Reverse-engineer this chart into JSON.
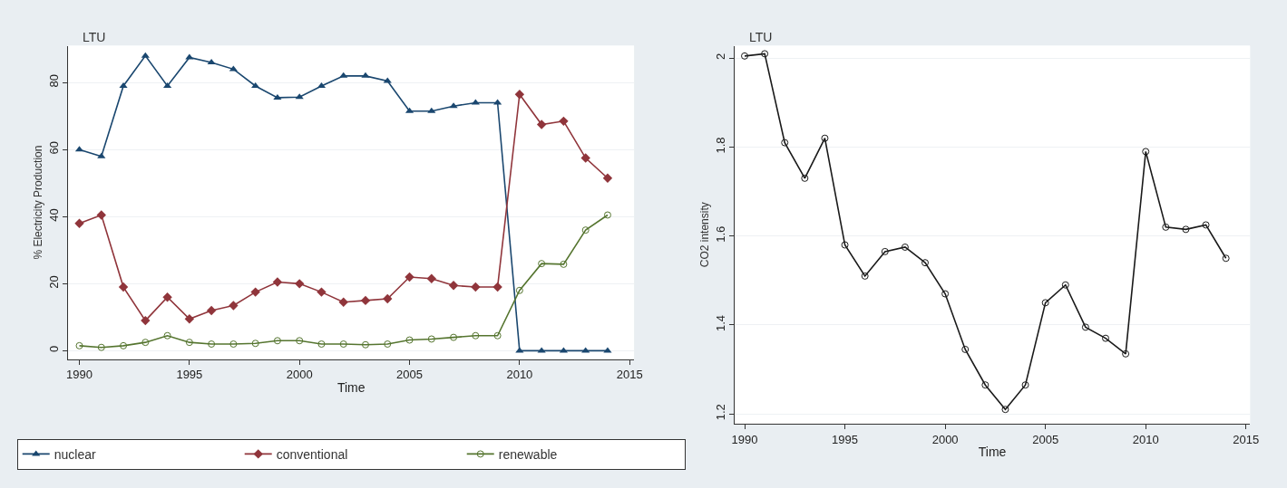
{
  "chart_data": [
    {
      "type": "line",
      "title": "LTU",
      "xlabel": "Time",
      "ylabel": "% Electricity Production",
      "x": [
        1990,
        1991,
        1992,
        1993,
        1994,
        1995,
        1996,
        1997,
        1998,
        1999,
        2000,
        2001,
        2002,
        2003,
        2004,
        2005,
        2006,
        2007,
        2008,
        2009,
        2010,
        2011,
        2012,
        2013,
        2014
      ],
      "series": [
        {
          "name": "nuclear",
          "color": "#1a476f",
          "marker": "triangle",
          "values": [
            60,
            58,
            79,
            88,
            79,
            87.5,
            86,
            84,
            79,
            75.5,
            75.7,
            79,
            82,
            82,
            80.5,
            71.5,
            71.5,
            73,
            74,
            74,
            0,
            0,
            0,
            0,
            0
          ]
        },
        {
          "name": "conventional",
          "color": "#90353b",
          "marker": "diamond",
          "values": [
            38,
            40.5,
            19,
            9,
            16,
            9.5,
            12,
            13.5,
            17.5,
            20.5,
            20,
            17.5,
            14.5,
            15,
            15.5,
            22,
            21.5,
            19.5,
            19,
            19,
            76.5,
            67.5,
            68.5,
            57.5,
            51.5
          ]
        },
        {
          "name": "renewable",
          "color": "#55752f",
          "marker": "circle",
          "values": [
            1.5,
            1,
            1.5,
            2.5,
            4.5,
            2.5,
            2,
            2,
            2.2,
            3,
            3,
            2,
            2,
            1.8,
            2,
            3.2,
            3.5,
            4,
            4.5,
            4.5,
            18,
            26,
            25.8,
            36,
            40.5
          ]
        }
      ],
      "xlim": [
        1989.5,
        2015.2
      ],
      "xticks": [
        1990,
        1995,
        2000,
        2005,
        2010,
        2015
      ],
      "ylim": [
        -2.5,
        91
      ],
      "yticks": [
        0,
        20,
        40,
        60,
        80
      ],
      "grid": "y",
      "legend": "bottom"
    },
    {
      "type": "line",
      "title": "LTU",
      "xlabel": "Time",
      "ylabel": "CO2 intensity",
      "x": [
        1990,
        1991,
        1992,
        1993,
        1994,
        1995,
        1996,
        1997,
        1998,
        1999,
        2000,
        2001,
        2002,
        2003,
        2004,
        2005,
        2006,
        2007,
        2008,
        2009,
        2010,
        2011,
        2012,
        2013,
        2014
      ],
      "series": [
        {
          "color": "#1a1a1a",
          "marker": "circle",
          "values": [
            2.005,
            2.01,
            1.81,
            1.73,
            1.82,
            1.58,
            1.51,
            1.565,
            1.575,
            1.54,
            1.47,
            1.345,
            1.265,
            1.21,
            1.265,
            1.45,
            1.49,
            1.395,
            1.37,
            1.335,
            1.79,
            1.62,
            1.615,
            1.625,
            1.55
          ]
        }
      ],
      "xlim": [
        1989.5,
        2015.2
      ],
      "xticks": [
        1990,
        1995,
        2000,
        2005,
        2010,
        2015
      ],
      "ylim": [
        1.178,
        2.028
      ],
      "yticks": [
        1.2,
        1.4,
        1.6,
        1.8,
        2
      ],
      "grid": "y",
      "legend": false
    }
  ]
}
